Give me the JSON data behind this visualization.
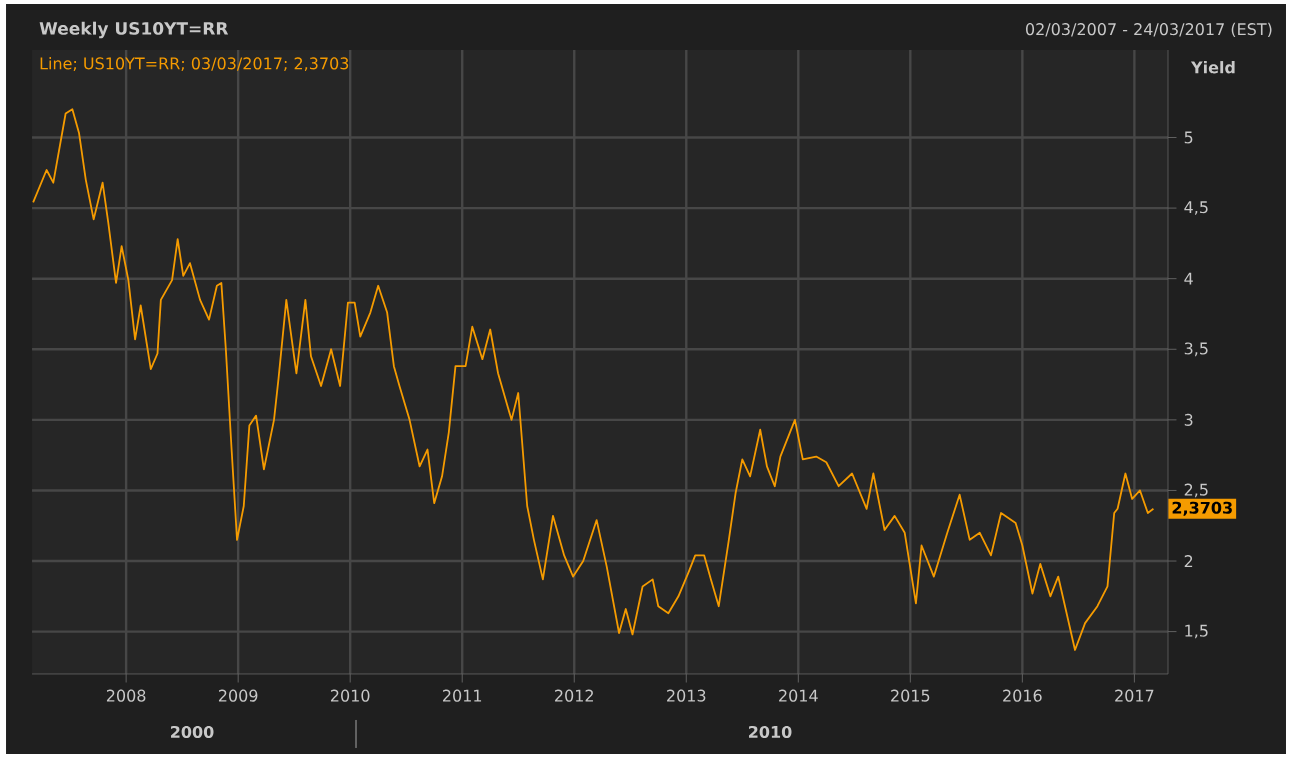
{
  "chart_data": {
    "type": "line",
    "title": "Weekly US10YT=RR",
    "subtitle": "02/03/2007 - 24/03/2017 (EST)",
    "ylabel": "Yield",
    "annotations": [
      "2000",
      "2010"
    ],
    "x": [
      2007.17,
      2007.29,
      2007.35,
      2007.46,
      2007.52,
      2007.58,
      2007.64,
      2007.71,
      2007.79,
      2007.84,
      2007.91,
      2007.96,
      2008.02,
      2008.08,
      2008.13,
      2008.22,
      2008.28,
      2008.31,
      2008.41,
      2008.46,
      2008.51,
      2008.57,
      2008.66,
      2008.74,
      2008.81,
      2008.85,
      2008.89,
      2008.94,
      2008.99,
      2009.05,
      2009.1,
      2009.16,
      2009.23,
      2009.32,
      2009.36,
      2009.43,
      2009.52,
      2009.6,
      2009.65,
      2009.74,
      2009.83,
      2009.91,
      2009.98,
      2010.04,
      2010.09,
      2010.18,
      2010.25,
      2010.33,
      2010.39,
      2010.44,
      2010.53,
      2010.62,
      2010.69,
      2010.75,
      2010.82,
      2010.88,
      2010.94,
      2011.03,
      2011.09,
      2011.18,
      2011.25,
      2011.32,
      2011.44,
      2011.5,
      2011.58,
      2011.64,
      2011.72,
      2011.81,
      2011.91,
      2011.99,
      2012.08,
      2012.2,
      2012.29,
      2012.4,
      2012.46,
      2012.52,
      2012.61,
      2012.7,
      2012.75,
      2012.84,
      2012.93,
      2013.02,
      2013.08,
      2013.16,
      2013.22,
      2013.29,
      2013.38,
      2013.44,
      2013.5,
      2013.57,
      2013.66,
      2013.72,
      2013.79,
      2013.84,
      2013.97,
      2014.04,
      2014.16,
      2014.25,
      2014.36,
      2014.48,
      2014.61,
      2014.67,
      2014.77,
      2014.86,
      2014.95,
      2015.05,
      2015.1,
      2015.21,
      2015.33,
      2015.44,
      2015.53,
      2015.62,
      2015.72,
      2015.81,
      2015.94,
      2016.0,
      2016.09,
      2016.16,
      2016.25,
      2016.32,
      2016.47,
      2016.56,
      2016.67,
      2016.76,
      2016.82,
      2016.85,
      2016.92,
      2016.98,
      2017.05,
      2017.12,
      2017.17
    ],
    "series": [
      {
        "name": "Line; US10YT=RR; 03/03/2017; 2,3703",
        "color": "#f59b00",
        "values": [
          4.54,
          4.77,
          4.68,
          5.17,
          5.2,
          5.03,
          4.7,
          4.42,
          4.68,
          4.4,
          3.97,
          4.23,
          3.99,
          3.57,
          3.81,
          3.36,
          3.47,
          3.85,
          3.99,
          4.28,
          4.02,
          4.11,
          3.85,
          3.71,
          3.95,
          3.97,
          3.5,
          2.81,
          2.15,
          2.39,
          2.96,
          3.03,
          2.65,
          3.0,
          3.29,
          3.85,
          3.33,
          3.85,
          3.45,
          3.24,
          3.5,
          3.24,
          3.83,
          3.83,
          3.59,
          3.76,
          3.95,
          3.76,
          3.38,
          3.24,
          3.0,
          2.67,
          2.79,
          2.41,
          2.6,
          2.91,
          3.38,
          3.38,
          3.66,
          3.43,
          3.64,
          3.33,
          3.0,
          3.19,
          2.39,
          2.15,
          1.87,
          2.32,
          2.04,
          1.89,
          2.0,
          2.29,
          1.96,
          1.49,
          1.66,
          1.48,
          1.82,
          1.87,
          1.68,
          1.63,
          1.75,
          1.92,
          2.04,
          2.04,
          1.87,
          1.68,
          2.15,
          2.48,
          2.72,
          2.6,
          2.93,
          2.67,
          2.53,
          2.74,
          3.0,
          2.72,
          2.74,
          2.7,
          2.53,
          2.62,
          2.37,
          2.62,
          2.22,
          2.32,
          2.2,
          1.7,
          2.11,
          1.89,
          2.2,
          2.47,
          2.15,
          2.2,
          2.04,
          2.34,
          2.27,
          2.11,
          1.77,
          1.98,
          1.75,
          1.89,
          1.37,
          1.56,
          1.68,
          1.82,
          2.34,
          2.37,
          2.62,
          2.44,
          2.5,
          2.34,
          2.3703
        ],
        "value_labels": [
          null,
          null,
          null,
          null,
          null,
          null,
          null,
          null,
          null,
          null,
          null,
          null,
          null,
          null,
          null,
          null,
          null,
          null,
          null,
          null,
          null,
          null,
          null,
          null,
          null,
          null,
          null,
          null,
          null,
          null,
          null,
          null,
          null,
          null,
          null,
          null,
          null,
          null,
          null,
          null,
          null,
          null,
          null,
          null,
          null,
          null,
          null,
          null,
          null,
          null,
          null,
          null,
          null,
          null,
          null,
          null,
          null,
          null,
          null,
          null,
          null,
          null,
          null,
          null,
          null,
          null,
          null,
          null,
          null,
          null,
          null,
          null,
          null,
          null,
          null,
          null,
          null,
          null,
          null,
          null,
          null,
          null,
          null,
          null,
          null,
          null,
          null,
          null,
          null,
          null,
          null,
          null,
          null,
          null,
          null,
          null,
          null,
          null,
          null,
          null,
          null,
          null,
          null,
          null,
          null,
          null,
          null,
          null,
          null,
          null,
          null,
          null,
          null,
          null,
          null,
          null,
          null,
          null,
          null,
          null,
          null,
          null,
          null,
          null,
          null,
          null,
          null,
          null,
          null,
          null,
          "2,3703"
        ]
      }
    ],
    "xlim": [
      2007.16,
      2017.3
    ],
    "xticks": [
      2008,
      2009,
      2010,
      2011,
      2012,
      2013,
      2014,
      2015,
      2016,
      2017
    ],
    "ylim": [
      1.2,
      5.62
    ],
    "yticks": [
      {
        "value": 1.5,
        "label": "1,5"
      },
      2,
      {
        "value": 2.5,
        "label": "2,5"
      },
      3,
      {
        "value": 3.5,
        "label": "3,5"
      },
      4,
      {
        "value": 4.5,
        "label": "4,5"
      },
      5
    ],
    "grid": true,
    "marker": "none",
    "line_style": "solid"
  }
}
